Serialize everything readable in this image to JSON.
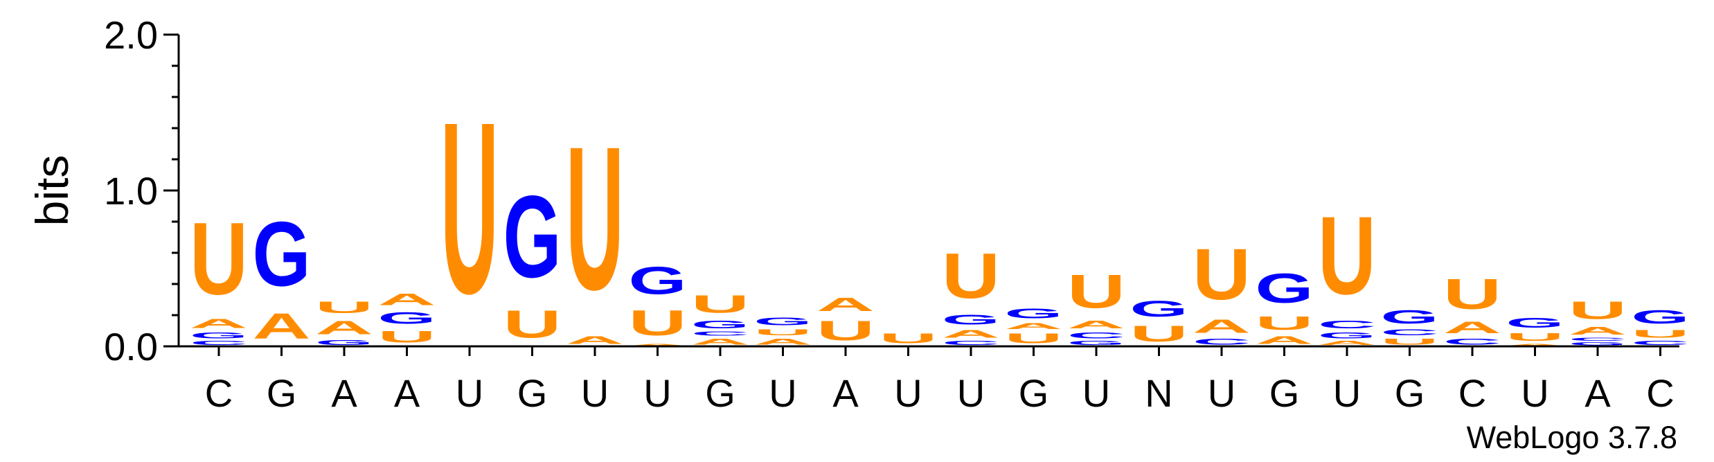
{
  "chart_data": {
    "type": "sequence-logo",
    "ylabel": "bits",
    "ylim": [
      0,
      2
    ],
    "yticks": [
      "0.0",
      "1.0",
      "2.0"
    ],
    "yticks_values": [
      0,
      1,
      2
    ],
    "footer": "WebLogo 3.7.8",
    "colors": {
      "U": "#ff8c00",
      "A": "#ff8c00",
      "G": "#0000ff",
      "C": "#0000ff"
    },
    "positions": [
      {
        "consensus": "C",
        "letters": [
          {
            "base": "C",
            "bits": 0.04
          },
          {
            "base": "G",
            "bits": 0.06
          },
          {
            "base": "A",
            "bits": 0.09
          },
          {
            "base": "U",
            "bits": 0.74
          }
        ]
      },
      {
        "consensus": "G",
        "letters": [
          {
            "base": "A",
            "bits": 0.26
          },
          {
            "base": "G",
            "bits": 0.66
          }
        ]
      },
      {
        "consensus": "A",
        "letters": [
          {
            "base": "G",
            "bits": 0.05
          },
          {
            "base": "A",
            "bits": 0.14
          },
          {
            "base": "U",
            "bits": 0.12
          }
        ]
      },
      {
        "consensus": "A",
        "letters": [
          {
            "base": "U",
            "bits": 0.12
          },
          {
            "base": "G",
            "bits": 0.12
          },
          {
            "base": "A",
            "bits": 0.12
          }
        ]
      },
      {
        "consensus": "U",
        "letters": [
          {
            "base": "U",
            "bits": 1.76
          }
        ]
      },
      {
        "consensus": "G",
        "letters": [
          {
            "base": "U",
            "bits": 0.28
          },
          {
            "base": "G",
            "bits": 0.84
          }
        ]
      },
      {
        "consensus": "U",
        "letters": [
          {
            "base": "A",
            "bits": 0.08
          },
          {
            "base": "U",
            "bits": 1.47
          }
        ]
      },
      {
        "consensus": "U",
        "letters": [
          {
            "base": "A",
            "bits": 0.02
          },
          {
            "base": "U",
            "bits": 0.26
          },
          {
            "base": "G",
            "bits": 0.28
          }
        ]
      },
      {
        "consensus": "G",
        "letters": [
          {
            "base": "A",
            "bits": 0.06
          },
          {
            "base": "C",
            "bits": 0.04
          },
          {
            "base": "G",
            "bits": 0.08
          },
          {
            "base": "U",
            "bits": 0.18
          }
        ]
      },
      {
        "consensus": "U",
        "letters": [
          {
            "base": "A",
            "bits": 0.06
          },
          {
            "base": "U",
            "bits": 0.06
          },
          {
            "base": "G",
            "bits": 0.08
          }
        ]
      },
      {
        "consensus": "A",
        "letters": [
          {
            "base": "U",
            "bits": 0.2
          },
          {
            "base": "A",
            "bits": 0.14
          }
        ]
      },
      {
        "consensus": "U",
        "letters": [
          {
            "base": "U",
            "bits": 0.1
          }
        ]
      },
      {
        "consensus": "U",
        "letters": [
          {
            "base": "C",
            "bits": 0.04
          },
          {
            "base": "A",
            "bits": 0.08
          },
          {
            "base": "G",
            "bits": 0.1
          },
          {
            "base": "U",
            "bits": 0.46
          }
        ]
      },
      {
        "consensus": "G",
        "letters": [
          {
            "base": "U",
            "bits": 0.1
          },
          {
            "base": "A",
            "bits": 0.06
          },
          {
            "base": "G",
            "bits": 0.1
          }
        ]
      },
      {
        "consensus": "U",
        "letters": [
          {
            "base": "G",
            "bits": 0.04
          },
          {
            "base": "C",
            "bits": 0.06
          },
          {
            "base": "A",
            "bits": 0.08
          },
          {
            "base": "U",
            "bits": 0.34
          }
        ]
      },
      {
        "consensus": "N",
        "letters": [
          {
            "base": "U",
            "bits": 0.16
          },
          {
            "base": "G",
            "bits": 0.16
          }
        ]
      },
      {
        "consensus": "U",
        "letters": [
          {
            "base": "C",
            "bits": 0.06
          },
          {
            "base": "A",
            "bits": 0.14
          },
          {
            "base": "U",
            "bits": 0.52
          }
        ]
      },
      {
        "consensus": "G",
        "letters": [
          {
            "base": "A",
            "bits": 0.08
          },
          {
            "base": "U",
            "bits": 0.14
          },
          {
            "base": "G",
            "bits": 0.3
          }
        ]
      },
      {
        "consensus": "U",
        "letters": [
          {
            "base": "A",
            "bits": 0.04
          },
          {
            "base": "G",
            "bits": 0.06
          },
          {
            "base": "C",
            "bits": 0.08
          },
          {
            "base": "U",
            "bits": 0.8
          }
        ]
      },
      {
        "consensus": "G",
        "letters": [
          {
            "base": "U",
            "bits": 0.06
          },
          {
            "base": "C",
            "bits": 0.06
          },
          {
            "base": "G",
            "bits": 0.14
          }
        ]
      },
      {
        "consensus": "C",
        "letters": [
          {
            "base": "C",
            "bits": 0.06
          },
          {
            "base": "A",
            "bits": 0.12
          },
          {
            "base": "U",
            "bits": 0.31
          }
        ]
      },
      {
        "consensus": "U",
        "letters": [
          {
            "base": "A",
            "bits": 0.02
          },
          {
            "base": "U",
            "bits": 0.08
          },
          {
            "base": "G",
            "bits": 0.1
          }
        ]
      },
      {
        "consensus": "A",
        "letters": [
          {
            "base": "G",
            "bits": 0.03
          },
          {
            "base": "C",
            "bits": 0.03
          },
          {
            "base": "A",
            "bits": 0.08
          },
          {
            "base": "U",
            "bits": 0.18
          }
        ]
      },
      {
        "consensus": "C",
        "letters": [
          {
            "base": "C",
            "bits": 0.04
          },
          {
            "base": "U",
            "bits": 0.08
          },
          {
            "base": "G",
            "bits": 0.14
          }
        ]
      }
    ]
  }
}
